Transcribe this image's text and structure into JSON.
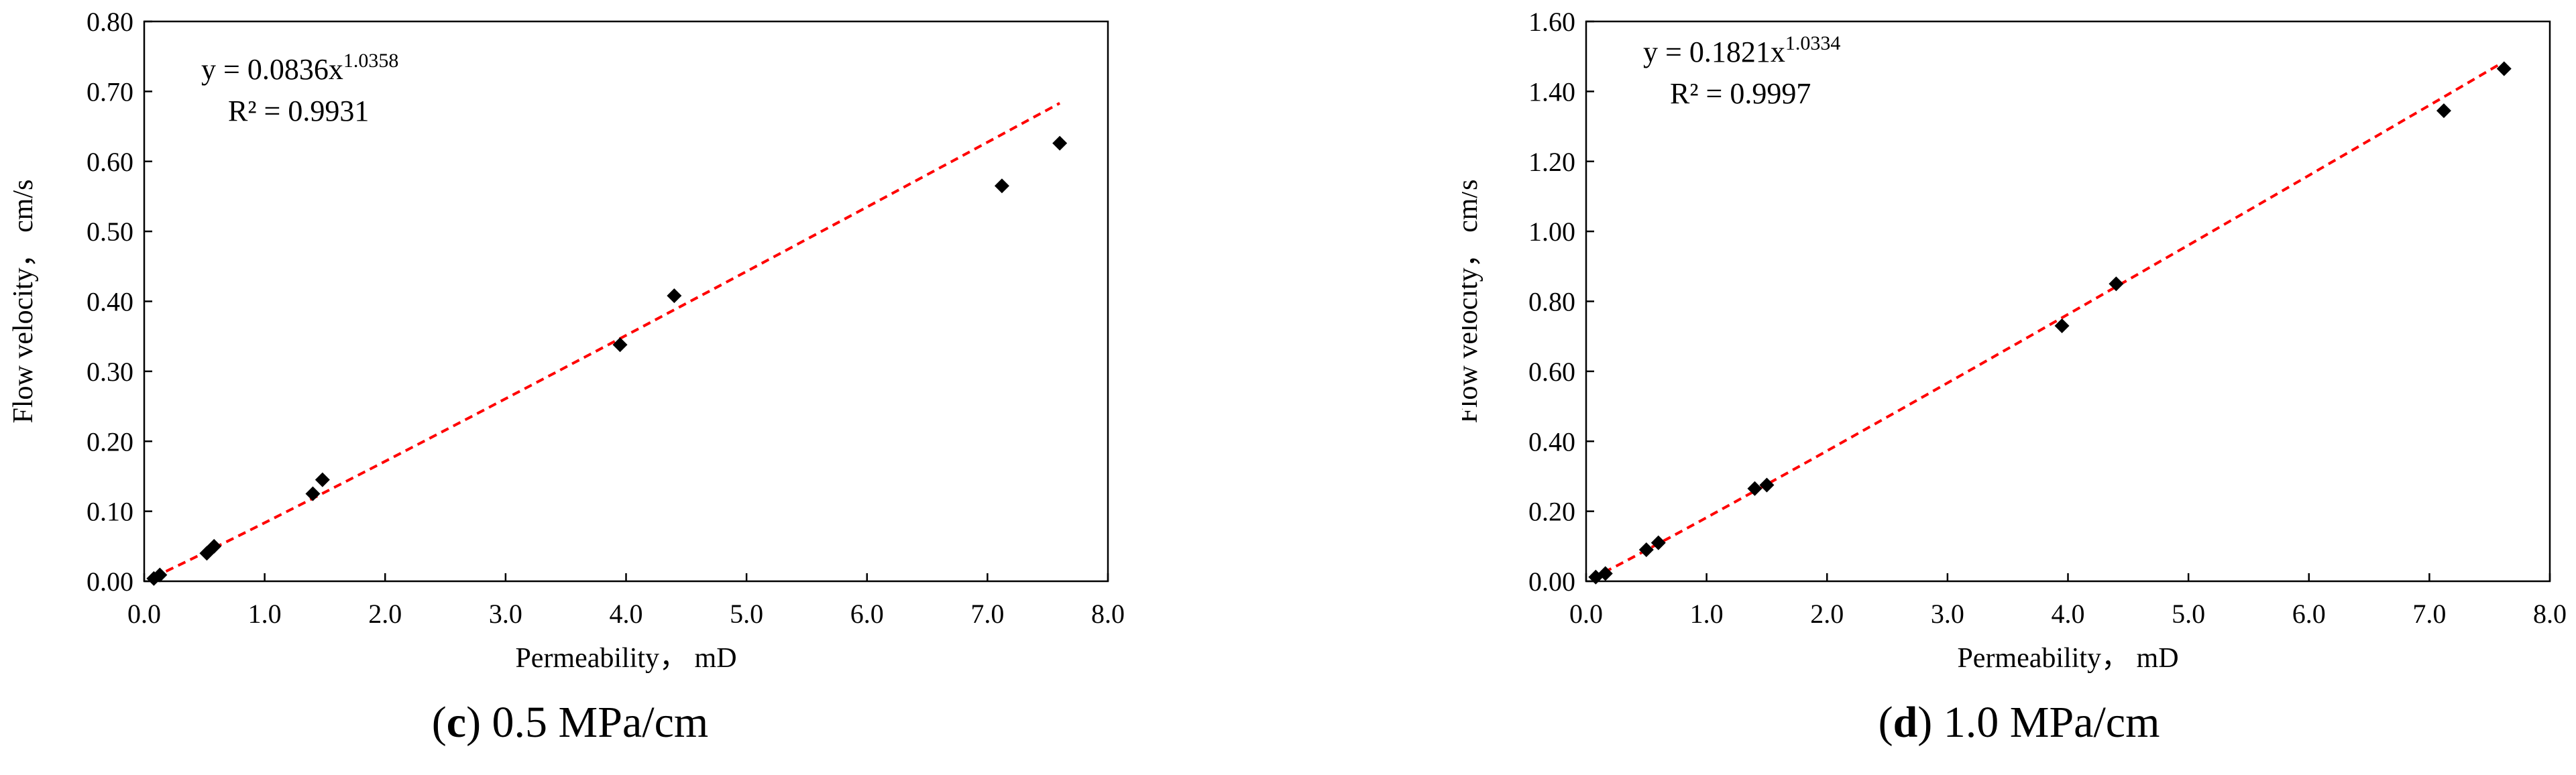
{
  "chart_data": [
    {
      "type": "scatter",
      "caption_letter": "c",
      "caption_text": " 0.5 MPa/cm",
      "xlabel": "Permeability， mD",
      "ylabel": "Flow velocity， cm/s",
      "xlim": [
        0,
        8
      ],
      "ylim": [
        0,
        0.8
      ],
      "x_ticks": [
        "0.0",
        "1.0",
        "2.0",
        "3.0",
        "4.0",
        "5.0",
        "6.0",
        "7.0",
        "8.0"
      ],
      "y_ticks": [
        "0.00",
        "0.10",
        "0.20",
        "0.30",
        "0.40",
        "0.50",
        "0.60",
        "0.70",
        "0.80"
      ],
      "grid": false,
      "marker": "diamond",
      "marker_color": "#000000",
      "trend_color": "#ff0000",
      "equation_base": "y = 0.0836x",
      "equation_exp": "1.0358",
      "r2": "R² = 0.9931",
      "points": [
        {
          "x": 0.08,
          "y": 0.004
        },
        {
          "x": 0.13,
          "y": 0.009
        },
        {
          "x": 0.52,
          "y": 0.04
        },
        {
          "x": 0.58,
          "y": 0.05
        },
        {
          "x": 1.4,
          "y": 0.125
        },
        {
          "x": 1.48,
          "y": 0.145
        },
        {
          "x": 3.95,
          "y": 0.338
        },
        {
          "x": 4.4,
          "y": 0.408
        },
        {
          "x": 7.12,
          "y": 0.565
        },
        {
          "x": 7.6,
          "y": 0.626
        }
      ],
      "trend": {
        "a": 0.0836,
        "b": 1.0358,
        "x_range": [
          0.08,
          7.6
        ]
      }
    },
    {
      "type": "scatter",
      "caption_letter": "d",
      "caption_text": " 1.0 MPa/cm",
      "xlabel": "Permeability， mD",
      "ylabel": "Flow velocity， cm/s",
      "xlim": [
        0,
        8
      ],
      "ylim": [
        0,
        1.6
      ],
      "x_ticks": [
        "0.0",
        "1.0",
        "2.0",
        "3.0",
        "4.0",
        "5.0",
        "6.0",
        "7.0",
        "8.0"
      ],
      "y_ticks": [
        "0.00",
        "0.20",
        "0.40",
        "0.60",
        "0.80",
        "1.00",
        "1.20",
        "1.40",
        "1.60"
      ],
      "grid": false,
      "marker": "diamond",
      "marker_color": "#000000",
      "trend_color": "#ff0000",
      "equation_base": "y = 0.1821x",
      "equation_exp": "1.0334",
      "r2": "R² = 0.9997",
      "points": [
        {
          "x": 0.08,
          "y": 0.012
        },
        {
          "x": 0.16,
          "y": 0.022
        },
        {
          "x": 0.5,
          "y": 0.09
        },
        {
          "x": 0.6,
          "y": 0.11
        },
        {
          "x": 1.4,
          "y": 0.265
        },
        {
          "x": 1.5,
          "y": 0.275
        },
        {
          "x": 3.95,
          "y": 0.73
        },
        {
          "x": 4.4,
          "y": 0.85
        },
        {
          "x": 7.12,
          "y": 1.345
        },
        {
          "x": 7.62,
          "y": 1.465
        }
      ],
      "trend": {
        "a": 0.1821,
        "b": 1.0334,
        "x_range": [
          0.05,
          7.6
        ]
      }
    }
  ]
}
